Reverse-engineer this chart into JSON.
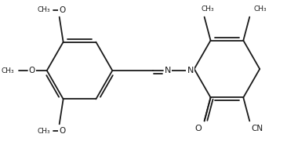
{
  "bg_color": "#ffffff",
  "line_color": "#1a1a1a",
  "line_width": 1.3,
  "figsize": [
    3.66,
    1.85
  ],
  "dpi": 100,
  "xlim": [
    0,
    366
  ],
  "ylim": [
    0,
    185
  ]
}
